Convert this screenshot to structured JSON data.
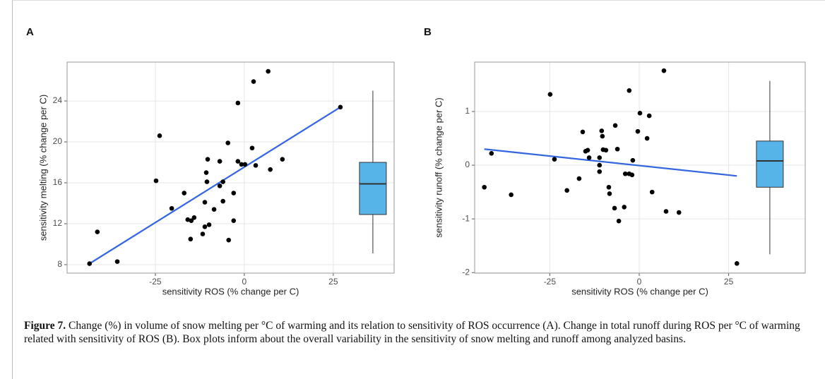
{
  "chart_data": [
    {
      "type": "scatter",
      "panel_label": "A",
      "x_label": "sensitivity ROS (% change per C)",
      "y_label": "sensitivity melting (% change per C)",
      "x": [
        -43.5,
        -41.3,
        -35.7,
        -23.8,
        -24.8,
        -20.4,
        -16.9,
        -15.9,
        -14.9,
        -14.1,
        -15.1,
        -10.3,
        -10.7,
        -10.5,
        -11.1,
        -11.1,
        -11.7,
        -9.9,
        -8.5,
        -6.9,
        -6.0,
        -6.0,
        -6.9,
        -4.6,
        -4.4,
        -3.0,
        -3.0,
        -1.8,
        -1.8,
        -0.8,
        0.2,
        2.2,
        2.6,
        3.2,
        6.7,
        7.3,
        10.7,
        27.0
      ],
      "values": [
        8.1,
        11.2,
        8.3,
        20.6,
        16.2,
        13.5,
        15.0,
        12.4,
        12.3,
        12.6,
        10.5,
        18.3,
        17.0,
        16.1,
        14.1,
        11.7,
        11.0,
        11.9,
        13.4,
        15.7,
        14.2,
        16.1,
        18.1,
        19.9,
        10.4,
        12.3,
        15.0,
        23.8,
        18.1,
        17.8,
        17.8,
        19.4,
        25.9,
        17.7,
        26.9,
        17.3,
        18.3,
        23.4
      ],
      "color": "#000000",
      "fit": {
        "x": [
          -43.5,
          27.0
        ],
        "values": [
          8.1,
          23.4
        ],
        "color": "#3366e0"
      },
      "boxplot": {
        "min": 9.1,
        "q1": 12.9,
        "median": 15.9,
        "q3": 18.0,
        "max": 25.0,
        "color": "#56b4e9"
      },
      "xlim": [
        -49.8,
        42.1
      ],
      "xticks": [
        -25,
        0,
        25
      ],
      "ylim": [
        7.17,
        27.8
      ],
      "yticks": [
        8,
        12,
        16,
        20,
        24
      ],
      "grid": true
    },
    {
      "type": "scatter",
      "panel_label": "B",
      "x_label": "sensitivity ROS (% change per C)",
      "y_label": "sensitivity runoff (% change per C)",
      "x": [
        -43.3,
        -41.3,
        -35.8,
        -24.9,
        -23.7,
        -20.2,
        -16.8,
        -15.8,
        -15.0,
        -14.4,
        -14.0,
        -11.1,
        -11.1,
        -11.1,
        -10.5,
        -10.3,
        -10.1,
        -9.3,
        -8.5,
        -8.3,
        -6.9,
        -6.7,
        -6.1,
        -5.7,
        -4.2,
        -3.9,
        -2.8,
        -2.8,
        -2.0,
        -1.8,
        -0.4,
        0.2,
        2.2,
        2.8,
        3.6,
        6.9,
        7.5,
        11.1,
        27.3
      ],
      "values": [
        -0.41,
        0.22,
        -0.55,
        1.32,
        0.11,
        -0.47,
        -0.25,
        0.62,
        0.26,
        0.28,
        0.14,
        0.14,
        0.0,
        -0.12,
        0.64,
        0.54,
        0.29,
        0.28,
        -0.41,
        -0.53,
        -0.8,
        0.74,
        0.3,
        -1.04,
        -0.78,
        -0.16,
        1.39,
        -0.16,
        -0.18,
        0.09,
        0.63,
        0.97,
        0.5,
        0.92,
        -0.5,
        1.76,
        -0.86,
        -0.88,
        -1.83
      ],
      "color": "#000000",
      "fit": {
        "x": [
          -43.3,
          27.3
        ],
        "values": [
          0.3,
          -0.2
        ],
        "color": "#3366e0"
      },
      "boxplot": {
        "min": -1.66,
        "q1": -0.41,
        "median": 0.08,
        "q3": 0.45,
        "max": 1.57,
        "color": "#56b4e9"
      },
      "xlim": [
        -46.0,
        46.4
      ],
      "xticks": [
        -25,
        0,
        25
      ],
      "ylim": [
        -2.01,
        1.92
      ],
      "yticks": [
        -2,
        -1,
        0,
        1
      ],
      "grid": true
    }
  ],
  "caption": {
    "label": "Figure 7.",
    "text": "Change (%) in volume of snow melting per °C of warming and its relation to sensitivity of ROS occurrence (A). Change in total runoff during ROS per °C of warming related with sensitivity of ROS (B). Box plots inform about the overall variability in the sensitivity of snow melting and runoff among analyzed basins."
  }
}
